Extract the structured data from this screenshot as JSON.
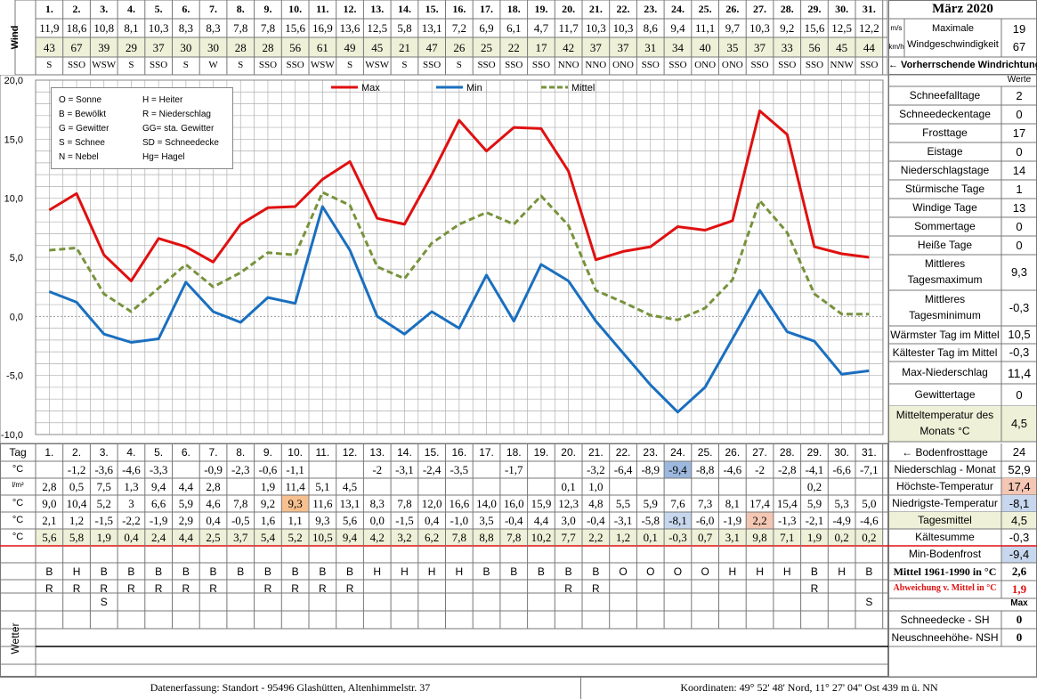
{
  "header": {
    "month_title": "März 2020",
    "wind_label": "Wind",
    "unit_ms": "m/s",
    "unit_kmh": "km/h",
    "max_wind_label_1": "Maximale",
    "max_wind_label_2": "Windgeschwindigkeit",
    "max_wind_ms": "19",
    "max_wind_kmh": "67",
    "prevailing_wind_label": "← Vorherrschende Windrichtung",
    "days": [
      "1.",
      "2.",
      "3.",
      "4.",
      "5.",
      "6.",
      "7.",
      "8.",
      "9.",
      "10.",
      "11.",
      "12.",
      "13.",
      "14.",
      "15.",
      "16.",
      "17.",
      "18.",
      "19.",
      "20.",
      "21.",
      "22.",
      "23.",
      "24.",
      "25.",
      "26.",
      "27.",
      "28.",
      "29.",
      "30.",
      "31."
    ],
    "wind_ms": [
      "11,9",
      "18,6",
      "10,8",
      "8,1",
      "10,3",
      "8,3",
      "8,3",
      "7,8",
      "7,8",
      "15,6",
      "16,9",
      "13,6",
      "12,5",
      "5,8",
      "13,1",
      "7,2",
      "6,9",
      "6,1",
      "4,7",
      "11,7",
      "10,3",
      "10,3",
      "8,6",
      "9,4",
      "11,1",
      "9,7",
      "10,3",
      "9,2",
      "15,6",
      "12,5",
      "12,2"
    ],
    "wind_kmh": [
      "43",
      "67",
      "39",
      "29",
      "37",
      "30",
      "30",
      "28",
      "28",
      "56",
      "61",
      "49",
      "45",
      "21",
      "47",
      "26",
      "25",
      "22",
      "17",
      "42",
      "37",
      "37",
      "31",
      "34",
      "40",
      "35",
      "37",
      "33",
      "56",
      "45",
      "44"
    ],
    "wind_dir": [
      "S",
      "SSO",
      "WSW",
      "S",
      "SSO",
      "S",
      "W",
      "S",
      "SSO",
      "SSO",
      "WSW",
      "S",
      "WSW",
      "S",
      "SSO",
      "S",
      "SSO",
      "SSO",
      "SSO",
      "NNO",
      "NNO",
      "ONO",
      "SSO",
      "SSO",
      "ONO",
      "ONO",
      "SSO",
      "SSO",
      "SSO",
      "NNW",
      "SSO"
    ]
  },
  "legend_box": {
    "items": [
      "O = Sonne",
      "H = Heiter",
      "B = Bewölkt",
      "R = Niederschlag",
      "G = Gewitter",
      "GG= sta. Gewitter",
      "S = Schnee",
      "SD = Schneedecke",
      "N = Nebel",
      "Hg= Hagel"
    ]
  },
  "chart_data": {
    "type": "line",
    "x": [
      1,
      2,
      3,
      4,
      5,
      6,
      7,
      8,
      9,
      10,
      11,
      12,
      13,
      14,
      15,
      16,
      17,
      18,
      19,
      20,
      21,
      22,
      23,
      24,
      25,
      26,
      27,
      28,
      29,
      30,
      31
    ],
    "y_ticks": [
      "20,0",
      "15,0",
      "10,0",
      "5,0",
      "0,0",
      "-5,0",
      "-10,0"
    ],
    "ylim": [
      -10,
      20
    ],
    "grid": true,
    "legend_position": "top",
    "series": [
      {
        "name": "Max",
        "color": "#e01010",
        "dash": false,
        "values": [
          9.0,
          10.4,
          5.2,
          3.0,
          6.6,
          5.9,
          4.6,
          7.8,
          9.2,
          9.3,
          11.6,
          13.1,
          8.3,
          7.8,
          12.0,
          16.6,
          14.0,
          16.0,
          15.9,
          12.3,
          4.8,
          5.5,
          5.9,
          7.6,
          7.3,
          8.1,
          17.4,
          15.4,
          5.9,
          5.3,
          5.0
        ]
      },
      {
        "name": "Min",
        "color": "#1a6fbf",
        "dash": false,
        "values": [
          2.1,
          1.2,
          -1.5,
          -2.2,
          -1.9,
          2.9,
          0.4,
          -0.5,
          1.6,
          1.1,
          9.3,
          5.6,
          0.0,
          -1.5,
          0.4,
          -1.0,
          3.5,
          -0.4,
          4.4,
          3.0,
          -0.4,
          -3.1,
          -5.8,
          -8.1,
          -6.0,
          -1.9,
          2.2,
          -1.3,
          -2.1,
          -4.9,
          -4.6
        ]
      },
      {
        "name": "Mittel",
        "color": "#77933c",
        "dash": true,
        "values": [
          5.6,
          5.8,
          1.9,
          0.4,
          2.4,
          4.4,
          2.5,
          3.7,
          5.4,
          5.2,
          10.5,
          9.4,
          4.2,
          3.2,
          6.2,
          7.8,
          8.8,
          7.8,
          10.2,
          7.7,
          2.2,
          1.2,
          0.1,
          -0.3,
          0.7,
          3.1,
          9.8,
          7.1,
          1.9,
          0.2,
          0.2
        ]
      }
    ]
  },
  "table": {
    "tag_label": "Tag",
    "unit_c": "°C",
    "unit_lm2": "l/m²",
    "bodenfrost": [
      "",
      "-1,2",
      "-3,6",
      "-4,6",
      "-3,3",
      "",
      "-0,9",
      "-2,3",
      "-0,6",
      "-1,1",
      "",
      "",
      "-2",
      "-3,1",
      "-2,4",
      "-3,5",
      "",
      "-1,7",
      "",
      "",
      "-3,2",
      "-6,4",
      "-8,9",
      "-9,4",
      "-8,8",
      "-4,6",
      "-2",
      "-2,8",
      "-4,1",
      "-6,6",
      "-7,1"
    ],
    "niederschlag": [
      "2,8",
      "0,5",
      "7,5",
      "1,3",
      "9,4",
      "4,4",
      "2,8",
      "",
      "1,9",
      "11,4",
      "5,1",
      "4,5",
      "",
      "",
      "",
      "",
      "",
      "",
      "",
      "0,1",
      "1,0",
      "",
      "",
      "",
      "",
      "",
      "",
      "",
      "0,2",
      "",
      ""
    ],
    "hoechst": [
      "9,0",
      "10,4",
      "5,2",
      "3",
      "6,6",
      "5,9",
      "4,6",
      "7,8",
      "9,2",
      "9,3",
      "11,6",
      "13,1",
      "8,3",
      "7,8",
      "12,0",
      "16,6",
      "14,0",
      "16,0",
      "15,9",
      "12,3",
      "4,8",
      "5,5",
      "5,9",
      "7,6",
      "7,3",
      "8,1",
      "17,4",
      "15,4",
      "5,9",
      "5,3",
      "5,0"
    ],
    "niedrigst": [
      "2,1",
      "1,2",
      "-1,5",
      "-2,2",
      "-1,9",
      "2,9",
      "0,4",
      "-0,5",
      "1,6",
      "1,1",
      "9,3",
      "5,6",
      "0,0",
      "-1,5",
      "0,4",
      "-1,0",
      "3,5",
      "-0,4",
      "4,4",
      "3,0",
      "-0,4",
      "-3,1",
      "-5,8",
      "-8,1",
      "-6,0",
      "-1,9",
      "2,2",
      "-1,3",
      "-2,1",
      "-4,9",
      "-4,6"
    ],
    "mittel": [
      "5,6",
      "5,8",
      "1,9",
      "0,4",
      "2,4",
      "4,4",
      "2,5",
      "3,7",
      "5,4",
      "5,2",
      "10,5",
      "9,4",
      "4,2",
      "3,2",
      "6,2",
      "7,8",
      "8,8",
      "7,8",
      "10,2",
      "7,7",
      "2,2",
      "1,2",
      "0,1",
      "-0,3",
      "0,7",
      "3,1",
      "9,8",
      "7,1",
      "1,9",
      "0,2",
      "0,2"
    ],
    "wetter_label": "Wetter",
    "wetter1": [
      "B",
      "H",
      "B",
      "B",
      "B",
      "B",
      "B",
      "B",
      "B",
      "B",
      "B",
      "B",
      "H",
      "H",
      "H",
      "H",
      "B",
      "B",
      "B",
      "B",
      "B",
      "O",
      "O",
      "O",
      "O",
      "H",
      "H",
      "H",
      "B",
      "H",
      "B"
    ],
    "wetter2": [
      "R",
      "R",
      "R",
      "R",
      "R",
      "R",
      "R",
      "",
      "R",
      "R",
      "R",
      "R",
      "",
      "",
      "",
      "",
      "",
      "",
      "",
      "R",
      "R",
      "",
      "",
      "",
      "",
      "",
      "",
      "",
      "R",
      "",
      ""
    ],
    "wetter3": [
      "",
      "",
      "S",
      "",
      "",
      "",
      "",
      "",
      "",
      "",
      "",
      "",
      "",
      "",
      "",
      "",
      "",
      "",
      "",
      "",
      "",
      "",
      "",
      "",
      "",
      "",
      "",
      "",
      "",
      "",
      "S"
    ]
  },
  "right_panel": {
    "werte_label": "Werte",
    "stats": [
      {
        "label": "Schneefalltage",
        "value": "2"
      },
      {
        "label": "Schneedeckentage",
        "value": "0"
      },
      {
        "label": "Frosttage",
        "value": "17"
      },
      {
        "label": "Eistage",
        "value": "0"
      },
      {
        "label": "Niederschlagstage",
        "value": "14"
      },
      {
        "label": "Stürmische Tage",
        "value": "1"
      },
      {
        "label": "Windige Tage",
        "value": "13"
      },
      {
        "label": "Sommertage",
        "value": "0"
      },
      {
        "label": "Heiße Tage",
        "value": "0"
      }
    ],
    "mittleres_max_1": "Mittleres",
    "mittleres_max_2": "Tagesmaximum",
    "mittleres_max_val": "9,3",
    "mittleres_min_1": "Mittleres",
    "mittleres_min_2": "Tagesminimum",
    "mittleres_min_val": "-0,3",
    "waermster_label": "Wärmster Tag im Mittel",
    "waermster_val": "10,5",
    "kaeltester_label": "Kältester Tag im Mittel",
    "kaeltester_val": "-0,3",
    "max_ns_label": "Max-Niederschlag",
    "max_ns_val": "11,4",
    "gewitter_label": "Gewittertage",
    "gewitter_val": "0",
    "mitteltemp_1": "Mitteltemperatur des",
    "mitteltemp_2": "Monats °C",
    "mitteltemp_val": "4,5",
    "bodenfrosttage_label": "← Bodenfrosttage",
    "bodenfrosttage_val": "24",
    "ns_monat_label": "Niederschlag - Monat",
    "ns_monat_val": "52,9",
    "hoechst_label": "Höchste-Temperatur",
    "hoechst_val": "17,4",
    "niedrigst_label": "Niedrigste-Temperatur",
    "niedrigst_val": "-8,1",
    "tagesmittel_label": "Tagesmittel",
    "tagesmittel_val": "4,5",
    "kaeltesumme_label": "Kältesumme",
    "kaeltesumme_val": "-0,3",
    "minbodenfrost_label": "Min-Bodenfrost",
    "minbodenfrost_val": "-9,4",
    "mittel6190_label": "Mittel 1961-1990 in °C",
    "mittel6190_val": "2,6",
    "abweichung_label": "Abweichung v. Mittel in °C",
    "abweichung_val": "1,9",
    "max_label": "Max",
    "schneedecke_label": "Schneedecke -  SH",
    "schneedecke_val": "0",
    "neuschnee_label": "Neuschneehöhe- NSH",
    "neuschnee_val": "0"
  },
  "footer": {
    "left": "Datenerfassung:  Standort -  95496  Glashütten, Altenhimmelstr. 37",
    "right": "Koordinaten:  49° 52' 48' Nord,   11° 27' 04'' Ost   439 m ü. NN"
  },
  "colors": {
    "grid": "#b0b0b0",
    "highlight_orange": "#f7c08f",
    "highlight_blue": "#9db8df",
    "highlight_pink": "#f4c6b4",
    "highlight_lightblue": "#c7d7ee",
    "mittel_row_bg": "#eef0d8",
    "red_text": "#e01010"
  }
}
